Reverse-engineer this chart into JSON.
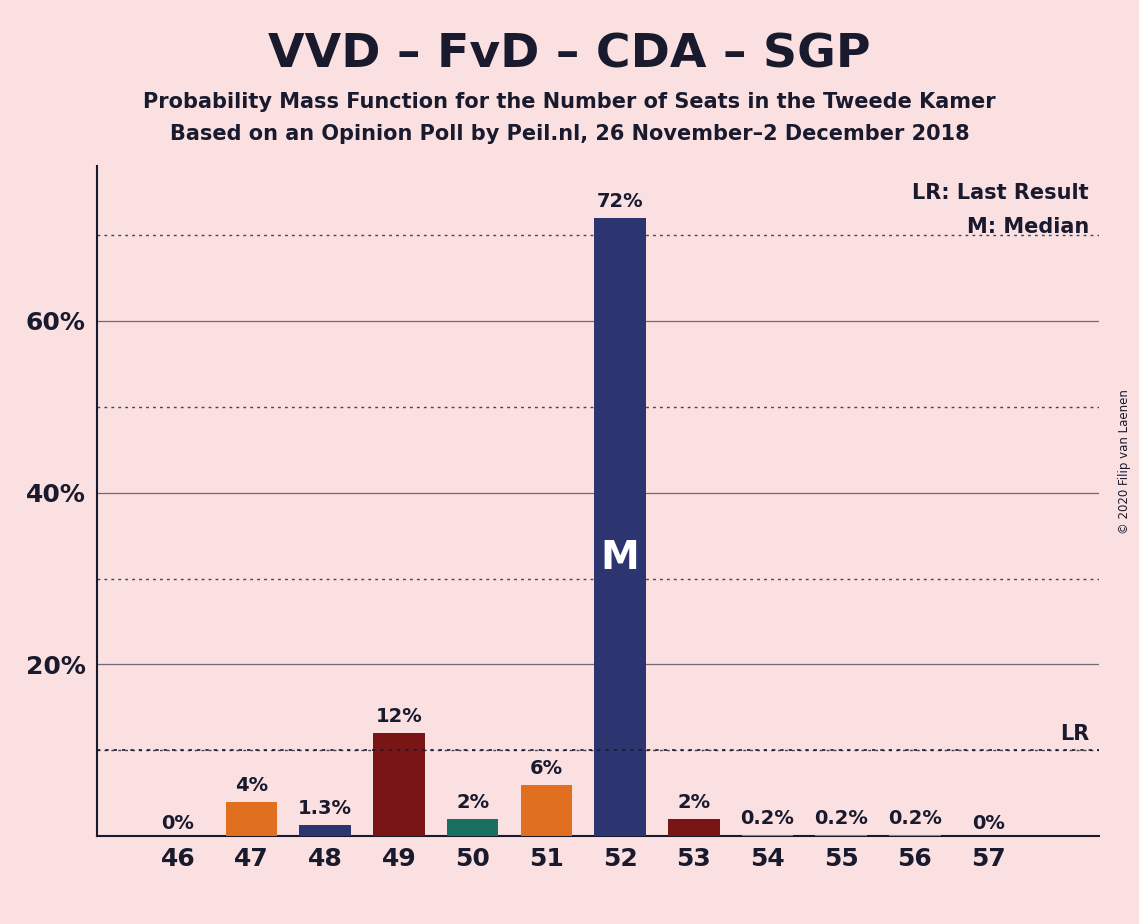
{
  "title": "VVD – FvD – CDA – SGP",
  "subtitle1": "Probability Mass Function for the Number of Seats in the Tweede Kamer",
  "subtitle2": "Based on an Opinion Poll by Peil.nl, 26 November–2 December 2018",
  "copyright": "© 2020 Filip van Laenen",
  "seats": [
    46,
    47,
    48,
    49,
    50,
    51,
    52,
    53,
    54,
    55,
    56,
    57
  ],
  "values": [
    0.0,
    4.0,
    1.3,
    12.0,
    2.0,
    6.0,
    72.0,
    2.0,
    0.2,
    0.2,
    0.2,
    0.0
  ],
  "labels": [
    "0%",
    "4%",
    "1.3%",
    "12%",
    "2%",
    "6%",
    "72%",
    "2%",
    "0.2%",
    "0.2%",
    "0.2%",
    "0%"
  ],
  "bar_colors": [
    "#E07020",
    "#E07020",
    "#2D3570",
    "#7A1515",
    "#1A7060",
    "#E07020",
    "#2D3570",
    "#7A1515",
    "#E07020",
    "#E07020",
    "#E07020",
    "#E07020"
  ],
  "background_color": "#FAE0E0",
  "ylim": [
    0,
    78
  ],
  "solid_gridlines": [
    20,
    40,
    60
  ],
  "dotted_gridlines": [
    10,
    30,
    50,
    70
  ],
  "lr_value": 10.0,
  "median_dotted_value": 70.0,
  "bar_width": 0.7,
  "title_fontsize": 34,
  "subtitle_fontsize": 15,
  "label_fontsize": 14,
  "axis_fontsize": 18,
  "legend_fontsize": 15,
  "text_color": "#1A1A2E"
}
